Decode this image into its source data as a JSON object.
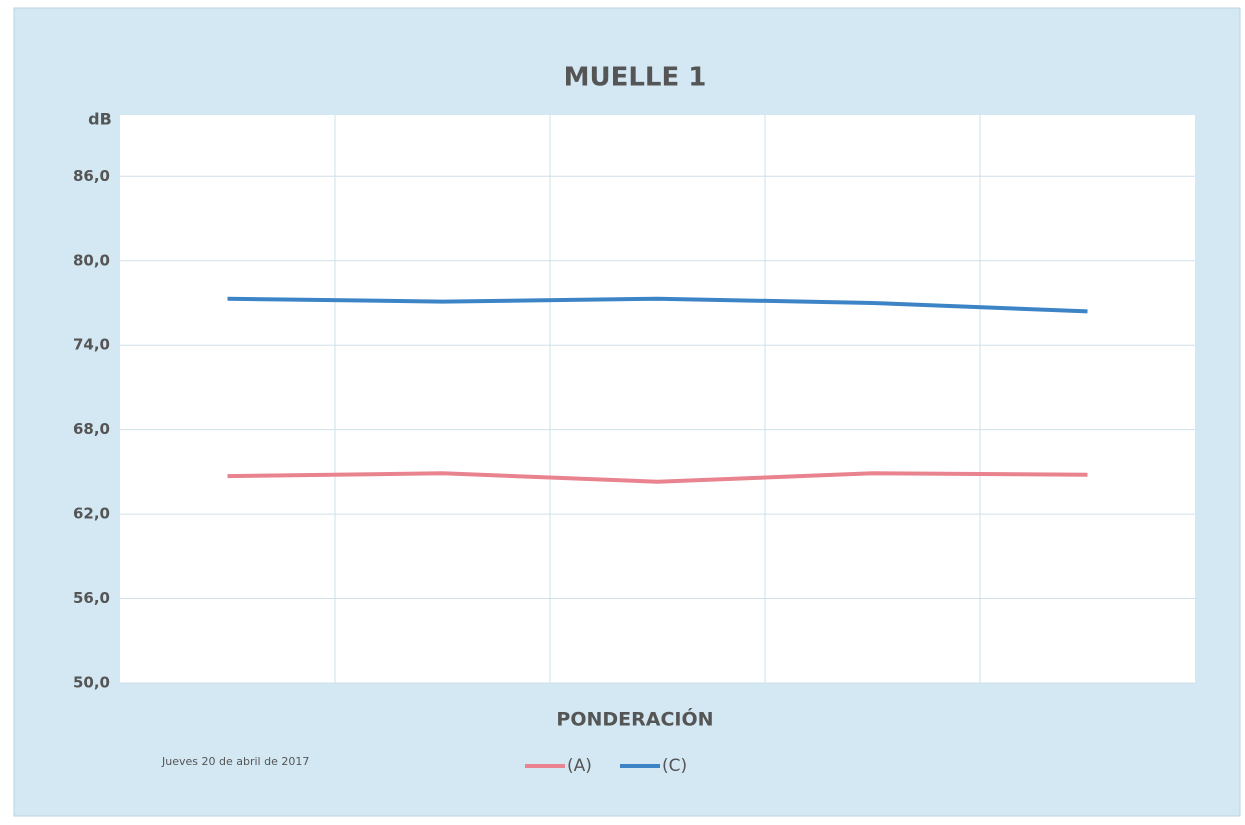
{
  "chart_data": {
    "type": "line",
    "title": "MUELLE 1",
    "y_label": "dB",
    "x_label": "PONDERACIÓN",
    "annotation": "Jueves 20 de abril de 2017",
    "categories": [
      null,
      null,
      null,
      null,
      null
    ],
    "series": [
      {
        "name": "(A)",
        "color": "#e8838f",
        "values": [
          64.7,
          64.9,
          64.3,
          64.9,
          64.8
        ]
      },
      {
        "name": "(C)",
        "color": "#3d84c6",
        "values": [
          77.3,
          77.1,
          77.3,
          77.0,
          76.4
        ]
      }
    ],
    "ylim": [
      50,
      90
    ],
    "yticks": [
      {
        "value": 50,
        "label": "50,0"
      },
      {
        "value": 56,
        "label": "56,0"
      },
      {
        "value": 62,
        "label": "62,0"
      },
      {
        "value": 68,
        "label": "68,0"
      },
      {
        "value": 74,
        "label": "74,0"
      },
      {
        "value": 80,
        "label": "80,0"
      },
      {
        "value": 86,
        "label": "86,0"
      }
    ],
    "grid": true,
    "legend": "bottom"
  }
}
